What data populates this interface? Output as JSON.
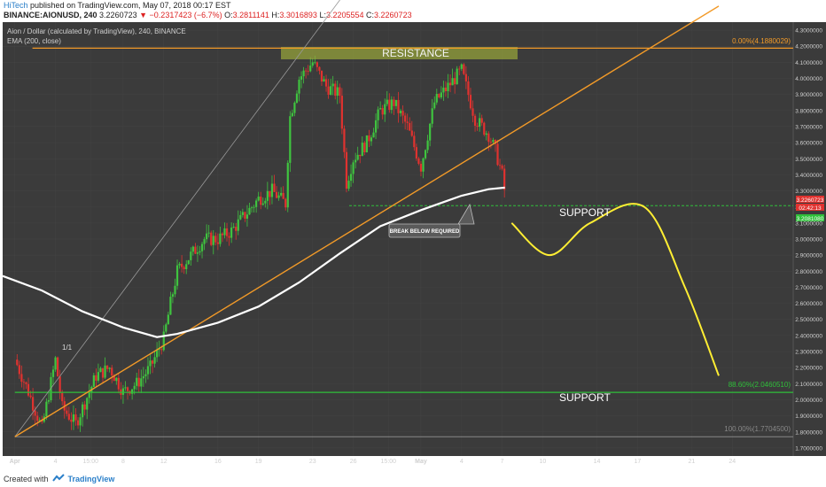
{
  "header": {
    "author": "HiTech",
    "published": "published on TradingView.com, May 07, 2018 00:17 EST",
    "symbol": "BINANCE:AIONUSD, 240",
    "price": "3.2260723",
    "change": "−0.2317423 (−6.7%)",
    "o_label": "O:",
    "o": "3.2811141",
    "h_label": "H:",
    "h": "3.3016893",
    "l_label": "L:",
    "l": "3.2205554",
    "c_label": "C:",
    "c": "3.2260723"
  },
  "legend": {
    "title": "Aion / Dollar (calculated by TradingView), 240, BINANCE",
    "ema": "EMA (200, close)"
  },
  "annotations": {
    "resistance": "RESISTANCE",
    "support_upper": "SUPPORT",
    "support_lower": "SUPPORT",
    "break_note": "BREAK BELOW REQUIRED",
    "fib_top": "0.00%(4.1880029)",
    "fib_mid": "88.60%(2.0460510)",
    "fib_bottom": "100.00%(1.7704500)",
    "marker_label": "1/1"
  },
  "price_tags": {
    "last": "3.2260723",
    "countdown": "02:42:13",
    "support_val": "3.2081080"
  },
  "footer": {
    "created_with": "Created with",
    "brand": "TradingView"
  },
  "colors": {
    "bg": "#3b3b3b",
    "up": "#3fc43f",
    "down": "#e0322f",
    "ema": "#ffffff",
    "trend": "#f29a28",
    "support": "#2fbf3a",
    "projection": "#ffee33",
    "resistance_zone": "#9aa83a"
  },
  "chart_data": {
    "type": "candlestick",
    "title": "Aion / Dollar (calculated by TradingView), 240, BINANCE",
    "ylim": [
      1.65,
      4.35
    ],
    "y_ticks": [
      1.7,
      1.8,
      1.9,
      2.0,
      2.1,
      2.2,
      2.3,
      2.4,
      2.5,
      2.6,
      2.7,
      2.8,
      2.9,
      3.0,
      3.1,
      3.2,
      3.3,
      3.4,
      3.5,
      3.6,
      3.7,
      3.8,
      3.9,
      4.0,
      4.1,
      4.2,
      4.3
    ],
    "y_tick_labels": [
      "1.7000000",
      "1.8000000",
      "1.9000000",
      "2.0000000",
      "2.1000000",
      "2.2000000",
      "2.3000000",
      "2.4000000",
      "2.5000000",
      "2.6000000",
      "2.7000000",
      "2.8000000",
      "2.9000000",
      "3.0000000",
      "3.1000000",
      "3.2000000",
      "3.3000000",
      "3.4000000",
      "3.5000000",
      "3.6000000",
      "3.7000000",
      "3.8000000",
      "3.9000000",
      "4.0000000",
      "4.1000000",
      "4.2000000",
      "4.3000000"
    ],
    "x_ticks": [
      "Apr",
      "4",
      "15:00",
      "8",
      "12",
      "16",
      "19",
      "23",
      "26",
      "15:00",
      "May",
      "4",
      "7",
      "10",
      "14",
      "17",
      "21",
      "24"
    ],
    "x_tick_days": [
      0,
      3,
      5.6,
      8,
      11,
      15,
      18,
      22,
      25,
      27.6,
      30,
      33,
      36,
      39,
      43,
      46,
      50,
      53
    ],
    "x_range_days": [
      -0.9,
      57.5
    ],
    "price_path_days": [
      0,
      1,
      2,
      3,
      3.5,
      4.5,
      6,
      7,
      8,
      9,
      10,
      11,
      11.5,
      12,
      13,
      14,
      15,
      16,
      17,
      18,
      19,
      20,
      20.3,
      21,
      22,
      23,
      24,
      24.5,
      25,
      26,
      27,
      28,
      29,
      30,
      31,
      32,
      33,
      33.5,
      34,
      35,
      35.5,
      36,
      36.3
    ],
    "price_path_close": [
      2.25,
      2.05,
      1.82,
      2.25,
      1.95,
      1.85,
      2.15,
      2.2,
      2.05,
      2.1,
      2.2,
      2.38,
      2.6,
      2.8,
      2.9,
      3.0,
      3.0,
      3.05,
      3.15,
      3.25,
      3.3,
      3.22,
      3.75,
      4.0,
      4.1,
      3.95,
      3.9,
      3.35,
      3.5,
      3.6,
      3.8,
      3.85,
      3.7,
      3.45,
      3.85,
      3.95,
      4.05,
      3.9,
      3.75,
      3.65,
      3.55,
      3.4,
      3.23
    ],
    "series": [
      {
        "name": "EMA (200, close)",
        "x": [
          -0.9,
          2,
          5,
          8,
          10.5,
          12,
          15,
          18,
          21,
          24,
          27,
          30,
          33,
          35,
          36.2
        ],
        "y": [
          2.77,
          2.68,
          2.55,
          2.45,
          2.39,
          2.41,
          2.48,
          2.58,
          2.73,
          2.91,
          3.08,
          3.18,
          3.27,
          3.31,
          3.32
        ]
      }
    ],
    "lines": {
      "resistance_level": 4.188,
      "support_upper": 3.208,
      "support_lower": 2.046,
      "fib_100": 1.77
    },
    "trendline": {
      "x": [
        0,
        52
      ],
      "y": [
        1.77,
        4.45
      ]
    },
    "projection": {
      "x": [
        36.7,
        39.5,
        42.5,
        46.5,
        49.5,
        52
      ],
      "y": [
        3.1,
        2.9,
        3.1,
        3.2,
        2.7,
        2.15
      ]
    }
  }
}
